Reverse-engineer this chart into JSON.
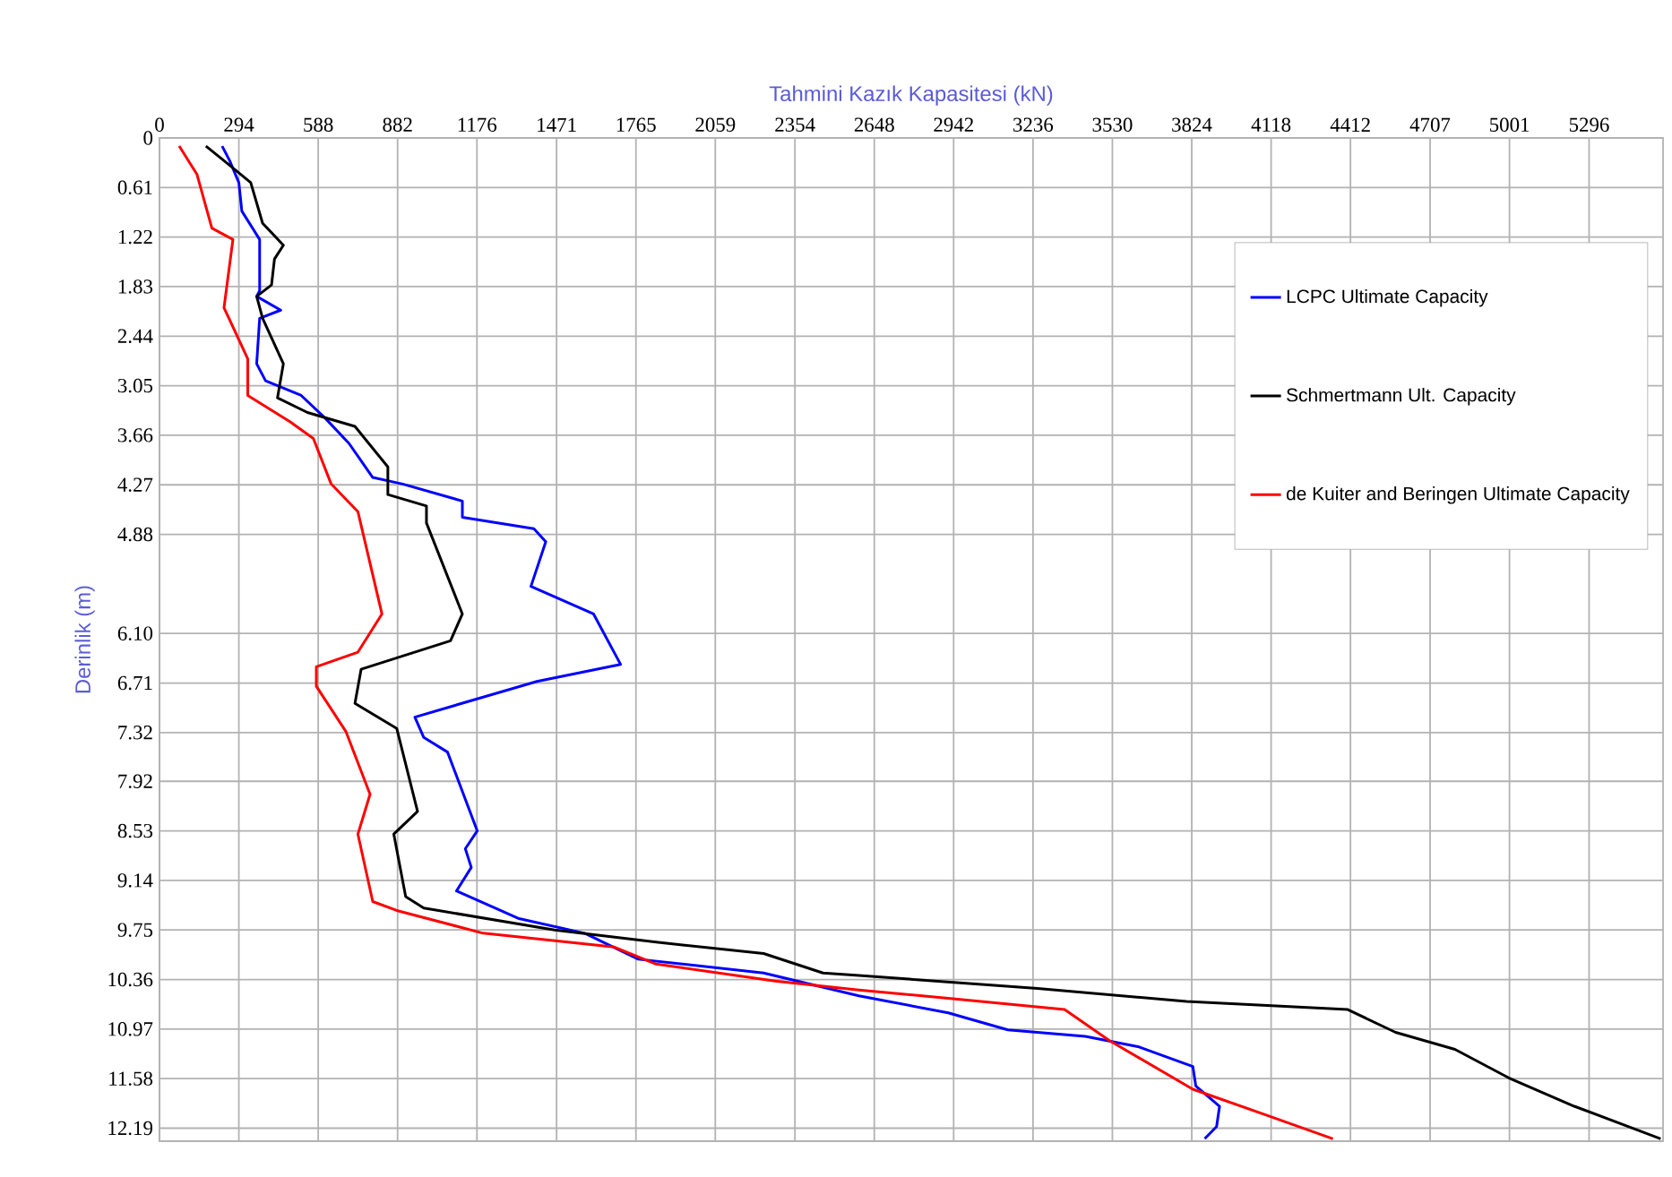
{
  "chart_data": {
    "type": "line",
    "xlabel": "Tahmini Kazık Kapasitesi (kN)",
    "ylabel": "Derinlik (m)",
    "xlim": [
      0,
      5570
    ],
    "ylim": [
      12.35,
      0
    ],
    "xticks": [
      0,
      294,
      588,
      882,
      1176,
      1471,
      1765,
      2059,
      2354,
      2648,
      2942,
      3236,
      3530,
      3824,
      4118,
      4412,
      4707,
      5001,
      5296
    ],
    "yticks": [
      0,
      0.61,
      1.22,
      1.83,
      2.44,
      3.05,
      3.66,
      4.27,
      4.88,
      {
        "value": 6.1,
        "label": "6.10"
      },
      6.71,
      7.32,
      7.92,
      8.53,
      9.14,
      9.75,
      10.36,
      10.97,
      11.58,
      12.19
    ],
    "grid": true,
    "legend": "right",
    "series": [
      {
        "name": "LCPC Ultimate Capacity",
        "color": "#0000ff",
        "x": [
          232,
          260,
          294,
          305,
          371,
          371,
          360,
          449,
          371,
          360,
          393,
          525,
          614,
          702,
          790,
          901,
          1122,
          1122,
          1387,
          1431,
          1376,
          1608,
          1708,
          1398,
          946,
          979,
          1067,
          1177,
          1133,
          1155,
          1100,
          1332,
          1575,
          1774,
          2238,
          2591,
          2922,
          3143,
          3430,
          3629,
          3828,
          3839,
          3927,
          3916,
          3872
        ],
        "values": [
          0.1,
          0.28,
          0.55,
          0.9,
          1.25,
          1.88,
          1.95,
          2.12,
          2.22,
          2.78,
          2.99,
          3.17,
          3.45,
          3.76,
          4.18,
          4.26,
          4.47,
          4.67,
          4.81,
          4.97,
          5.52,
          5.86,
          6.48,
          6.69,
          7.13,
          7.38,
          7.56,
          8.53,
          8.75,
          8.98,
          9.27,
          9.61,
          9.79,
          10.11,
          10.28,
          10.56,
          10.77,
          10.98,
          11.06,
          11.19,
          11.43,
          11.67,
          11.92,
          12.17,
          12.32
        ]
      },
      {
        "name": "Schmertmann Ult. Capacity",
        "color": "#000000",
        "x": [
          172,
          239,
          338,
          382,
          459,
          426,
          415,
          360,
          382,
          459,
          437,
          548,
          724,
          846,
          846,
          989,
          989,
          1122,
          1078,
          747,
          724,
          879,
          956,
          868,
          912,
          979,
          1464,
          1840,
          2238,
          2458,
          2591,
          3253,
          3805,
          4402,
          4579,
          4799,
          4998,
          5241,
          5561
        ],
        "values": [
          0.1,
          0.28,
          0.55,
          1.05,
          1.32,
          1.49,
          1.81,
          1.95,
          2.22,
          2.78,
          3.2,
          3.38,
          3.55,
          4.05,
          4.39,
          4.53,
          4.74,
          5.86,
          6.19,
          6.54,
          6.96,
          7.27,
          8.29,
          8.57,
          9.34,
          9.48,
          9.75,
          9.9,
          10.04,
          10.28,
          10.31,
          10.47,
          10.63,
          10.73,
          11.01,
          11.22,
          11.57,
          11.92,
          12.32
        ]
      },
      {
        "name": "de Kuiter and Beringen Ultimate Capacity",
        "color": "#ff0000",
        "x": [
          73,
          139,
          194,
          272,
          239,
          327,
          327,
          482,
          570,
          636,
          735,
          824,
          735,
          581,
          581,
          691,
          780,
          735,
          790,
          879,
          1199,
          1685,
          1840,
          2281,
          2591,
          2922,
          3353,
          3518,
          3828,
          4093,
          4347
        ],
        "values": [
          0.1,
          0.45,
          1.11,
          1.25,
          2.09,
          2.72,
          3.17,
          3.49,
          3.7,
          4.26,
          4.6,
          5.86,
          6.33,
          6.51,
          6.75,
          7.31,
          8.08,
          8.57,
          9.4,
          9.51,
          9.79,
          9.96,
          10.17,
          10.38,
          10.49,
          10.59,
          10.73,
          11.11,
          11.71,
          12.02,
          12.32
        ]
      }
    ]
  }
}
